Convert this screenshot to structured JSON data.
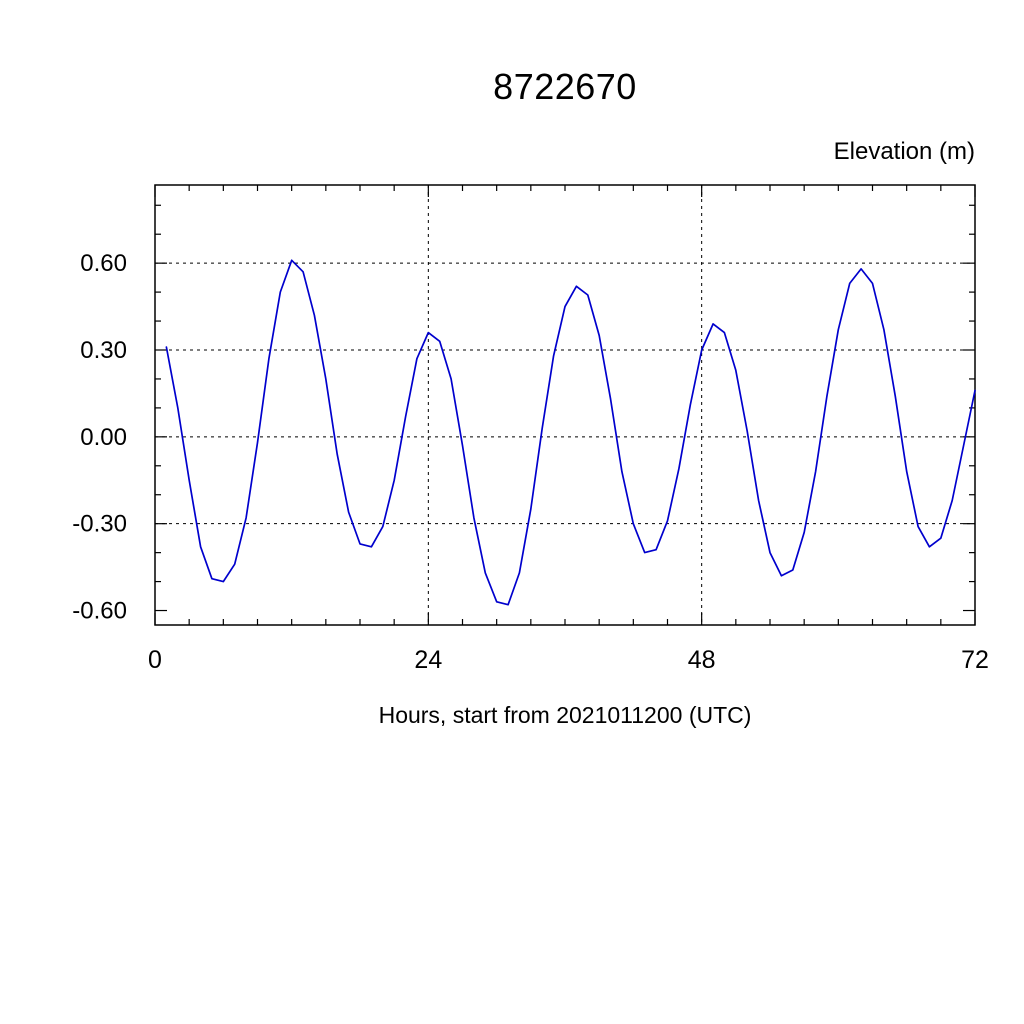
{
  "chart_data": {
    "type": "line",
    "title": "8722670",
    "ylabel": "Elevation (m)",
    "xlabel": "Hours, start from 2021011200 (UTC)",
    "xlim": [
      0,
      72
    ],
    "ylim": [
      -0.65,
      0.87
    ],
    "x_ticks": [
      {
        "value": 0,
        "label": "0"
      },
      {
        "value": 24,
        "label": "24"
      },
      {
        "value": 48,
        "label": "48"
      },
      {
        "value": 72,
        "label": "72"
      }
    ],
    "y_ticks": [
      {
        "value": -0.6,
        "label": "-0.60"
      },
      {
        "value": -0.3,
        "label": "-0.30"
      },
      {
        "value": 0.0,
        "label": "0.00"
      },
      {
        "value": 0.3,
        "label": "0.30"
      },
      {
        "value": 0.6,
        "label": "0.60"
      }
    ],
    "minor_tick_step_x": 3,
    "minor_tick_step_y": 0.1,
    "grid": true,
    "grid_style": "dashed",
    "grid_x": [
      24,
      48
    ],
    "grid_y": [
      -0.3,
      0.0,
      0.3,
      0.6
    ],
    "legend": "none",
    "line_color": "#0000cd",
    "axis_color": "#000000",
    "series": [
      {
        "name": "elevation",
        "x": [
          1,
          2,
          3,
          4,
          5,
          6,
          7,
          8,
          9,
          10,
          11,
          12,
          13,
          14,
          15,
          16,
          17,
          18,
          19,
          20,
          21,
          22,
          23,
          24,
          25,
          26,
          27,
          28,
          29,
          30,
          31,
          32,
          33,
          34,
          35,
          36,
          37,
          38,
          39,
          40,
          41,
          42,
          43,
          44,
          45,
          46,
          47,
          48,
          49,
          50,
          51,
          52,
          53,
          54,
          55,
          56,
          57,
          58,
          59,
          60,
          61,
          62,
          63,
          64,
          65,
          66,
          67,
          68,
          69,
          70,
          71,
          72
        ],
        "y": [
          0.31,
          0.1,
          -0.15,
          -0.38,
          -0.49,
          -0.5,
          -0.44,
          -0.28,
          -0.02,
          0.27,
          0.5,
          0.61,
          0.57,
          0.42,
          0.2,
          -0.06,
          -0.26,
          -0.37,
          -0.38,
          -0.31,
          -0.15,
          0.07,
          0.27,
          0.36,
          0.33,
          0.2,
          -0.03,
          -0.28,
          -0.47,
          -0.57,
          -0.58,
          -0.47,
          -0.25,
          0.03,
          0.28,
          0.45,
          0.52,
          0.49,
          0.35,
          0.13,
          -0.12,
          -0.3,
          -0.4,
          -0.39,
          -0.29,
          -0.11,
          0.11,
          0.3,
          0.39,
          0.36,
          0.23,
          0.02,
          -0.22,
          -0.4,
          -0.48,
          -0.46,
          -0.33,
          -0.12,
          0.14,
          0.37,
          0.53,
          0.58,
          0.53,
          0.37,
          0.14,
          -0.12,
          -0.31,
          -0.38,
          -0.35,
          -0.22,
          -0.03,
          0.16
        ]
      }
    ]
  }
}
